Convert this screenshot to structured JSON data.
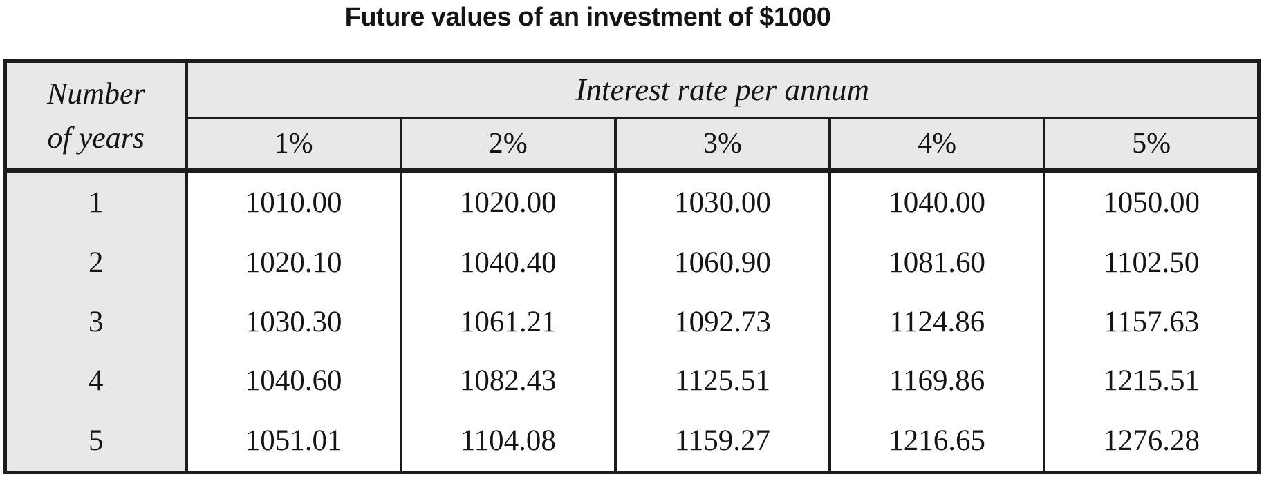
{
  "title": "Future values of an investment of $1000",
  "table": {
    "corner_header_line1": "Number",
    "corner_header_line2": "of years",
    "group_header": "Interest rate per annum",
    "rate_columns": [
      "1%",
      "2%",
      "3%",
      "4%",
      "5%"
    ],
    "rows": [
      {
        "years": "1",
        "values": [
          "1010.00",
          "1020.00",
          "1030.00",
          "1040.00",
          "1050.00"
        ]
      },
      {
        "years": "2",
        "values": [
          "1020.10",
          "1040.40",
          "1060.90",
          "1081.60",
          "1102.50"
        ]
      },
      {
        "years": "3",
        "values": [
          "1030.30",
          "1061.21",
          "1092.73",
          "1124.86",
          "1157.63"
        ]
      },
      {
        "years": "4",
        "values": [
          "1040.60",
          "1082.43",
          "1125.51",
          "1169.86",
          "1215.51"
        ]
      },
      {
        "years": "5",
        "values": [
          "1051.01",
          "1104.08",
          "1159.27",
          "1216.65",
          "1276.28"
        ]
      }
    ]
  },
  "colors": {
    "header_bg": "#e8e8e8",
    "border": "#1c1c1c",
    "text": "#151515",
    "page_bg": "#ffffff"
  }
}
